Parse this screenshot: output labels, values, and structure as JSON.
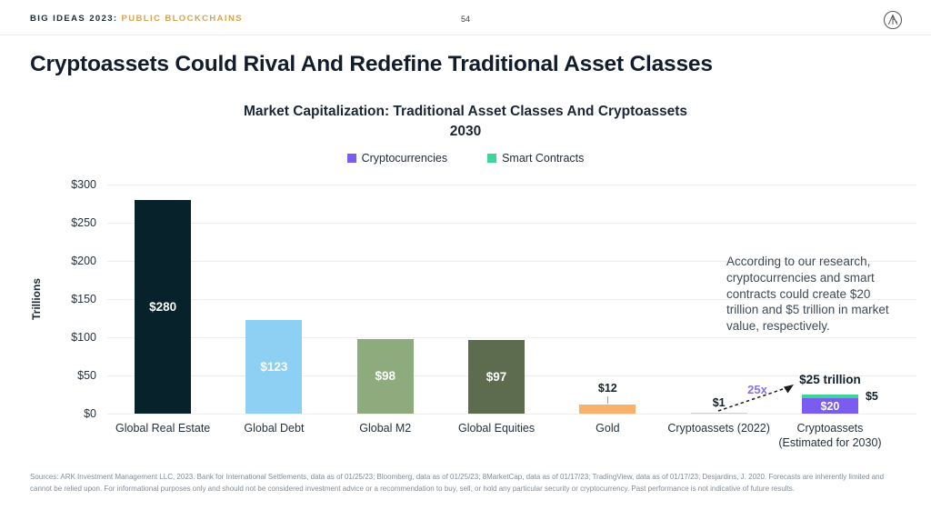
{
  "header": {
    "brand_prefix": "BIG IDEAS 2023:",
    "brand_highlight": "PUBLIC BLOCKCHAINS",
    "page_number": "54",
    "logo": "ark-invest-logo"
  },
  "title": "Cryptoassets Could Rival And Redefine Traditional Asset Classes",
  "chart_data": {
    "type": "bar",
    "title": "Market Capitalization: Traditional Asset Classes And Cryptoassets",
    "subtitle": "2030",
    "ylabel": "Trillions",
    "ylim": [
      0,
      300
    ],
    "yticks": [
      "$300",
      "$250",
      "$200",
      "$150",
      "$100",
      "$50",
      "$0"
    ],
    "grid": true,
    "legend_position": "top",
    "legend": [
      {
        "label": "Cryptocurrencies",
        "color": "#7a5cf0"
      },
      {
        "label": "Smart Contracts",
        "color": "#3ed59b"
      }
    ],
    "bars": [
      {
        "category": "Global Real Estate",
        "value": 280,
        "label": "$280",
        "color": "#07222b",
        "label_style": "inside"
      },
      {
        "category": "Global Debt",
        "value": 123,
        "label": "$123",
        "color": "#8dd0f4",
        "label_style": "inside"
      },
      {
        "category": "Global M2",
        "value": 98,
        "label": "$98",
        "color": "#8dab7c",
        "label_style": "inside"
      },
      {
        "category": "Global Equities",
        "value": 97,
        "label": "$97",
        "color": "#5d6b4e",
        "label_style": "inside"
      },
      {
        "category": "Gold",
        "value": 12,
        "label": "$12",
        "color": "#f8b16c",
        "label_style": "above-leader"
      },
      {
        "category": "Cryptoassets (2022)",
        "value": 1,
        "label": "$1",
        "color": "#cdd2d7",
        "label_style": "above"
      },
      {
        "category": "Cryptoassets\n(Estimated for 2030)",
        "label_style": "stacked",
        "total_label": "$25 trillion",
        "segments": [
          {
            "name": "Cryptocurrencies",
            "value": 20,
            "label": "$20",
            "color": "#7a5cf0",
            "label_style": "inside"
          },
          {
            "name": "Smart Contracts",
            "value": 5,
            "label": "$5",
            "color": "#3ed59b",
            "label_style": "side"
          }
        ]
      }
    ],
    "annotations": {
      "research_note": "According to our research, cryptocurrencies and smart contracts could create $20 trillion and $5 trillion in market value, respectively.",
      "multiplier_label": "25x"
    }
  },
  "footer": {
    "sources": "Sources: ARK Investment Management LLC, 2023. Bank for International Settlements, data as of 01/25/23; Bloomberg, data as of 01/25/23; 8MarketCap, data as of 01/17/23; TradingView, data as of 01/17/23; Desjardins, J. 2020. Forecasts are inherently limited and cannot be relied upon. For informational purposes only and should not be considered investment advice or a recommendation to buy, sell, or hold any particular security or cryptocurrency. Past performance is not indicative of future results."
  }
}
